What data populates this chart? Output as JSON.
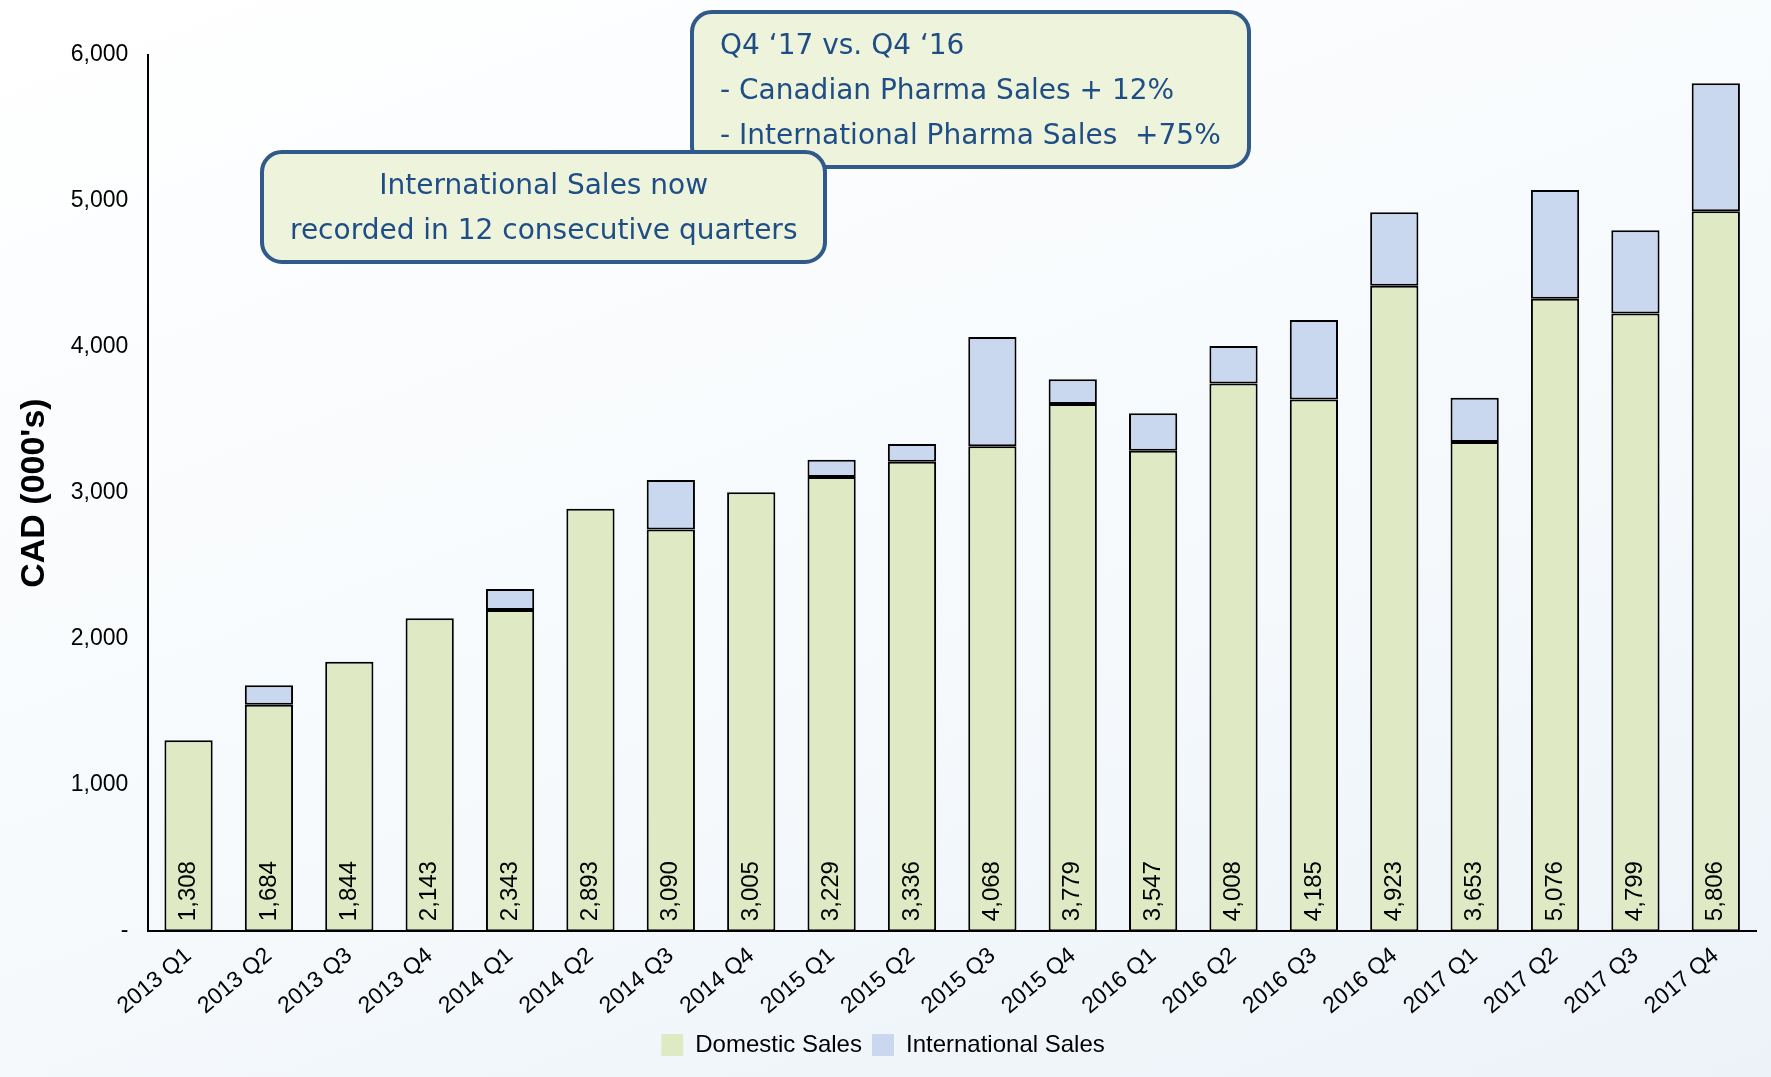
{
  "chart_data": {
    "type": "bar",
    "stacked": true,
    "ylabel": "CAD (000's)",
    "categories": [
      "2013 Q1",
      "2013 Q2",
      "2013 Q3",
      "2013 Q4",
      "2014 Q1",
      "2014 Q2",
      "2014 Q3",
      "2014 Q4",
      "2015 Q1",
      "2015 Q2",
      "2015 Q3",
      "2015 Q4",
      "2016 Q1",
      "2016 Q2",
      "2016 Q3",
      "2016 Q4",
      "2017 Q1",
      "2017 Q2",
      "2017 Q3",
      "2017 Q4"
    ],
    "series": [
      {
        "name": "Domestic Sales",
        "color": "#dfeac4",
        "values": [
          1308,
          1550,
          1844,
          2143,
          2200,
          2893,
          2750,
          3005,
          3110,
          3215,
          3320,
          3610,
          3290,
          3750,
          3640,
          4420,
          3350,
          4330,
          4230,
          4930
        ]
      },
      {
        "name": "International Sales",
        "color": "#c9d8ee",
        "values": [
          0,
          134,
          0,
          0,
          143,
          0,
          340,
          0,
          119,
          121,
          748,
          169,
          257,
          258,
          545,
          503,
          303,
          746,
          569,
          876
        ]
      }
    ],
    "totals": [
      "1,308",
      "1,684",
      "1,844",
      "2,143",
      "2,343",
      "2,893",
      "3,090",
      "3,005",
      "3,229",
      "3,336",
      "4,068",
      "3,779",
      "3,547",
      "4,008",
      "4,185",
      "4,923",
      "3,653",
      "5,076",
      "4,799",
      "5,806"
    ],
    "ylim": [
      0,
      6000
    ],
    "yticks": [
      {
        "value": 0,
        "label": "-"
      },
      {
        "value": 1000,
        "label": "1,000"
      },
      {
        "value": 2000,
        "label": "2,000"
      },
      {
        "value": 3000,
        "label": "3,000"
      },
      {
        "value": 4000,
        "label": "4,000"
      },
      {
        "value": 5000,
        "label": "5,000"
      },
      {
        "value": 6000,
        "label": "6,000"
      }
    ],
    "grid": false,
    "legend": "bottom",
    "annotations": [
      "Q4 ‘17 vs. Q4 ‘16\n- Canadian Pharma Sales + 12%\n- International Pharma Sales  +75%",
      "International Sales now\nrecorded in 12 consecutive quarters"
    ]
  }
}
